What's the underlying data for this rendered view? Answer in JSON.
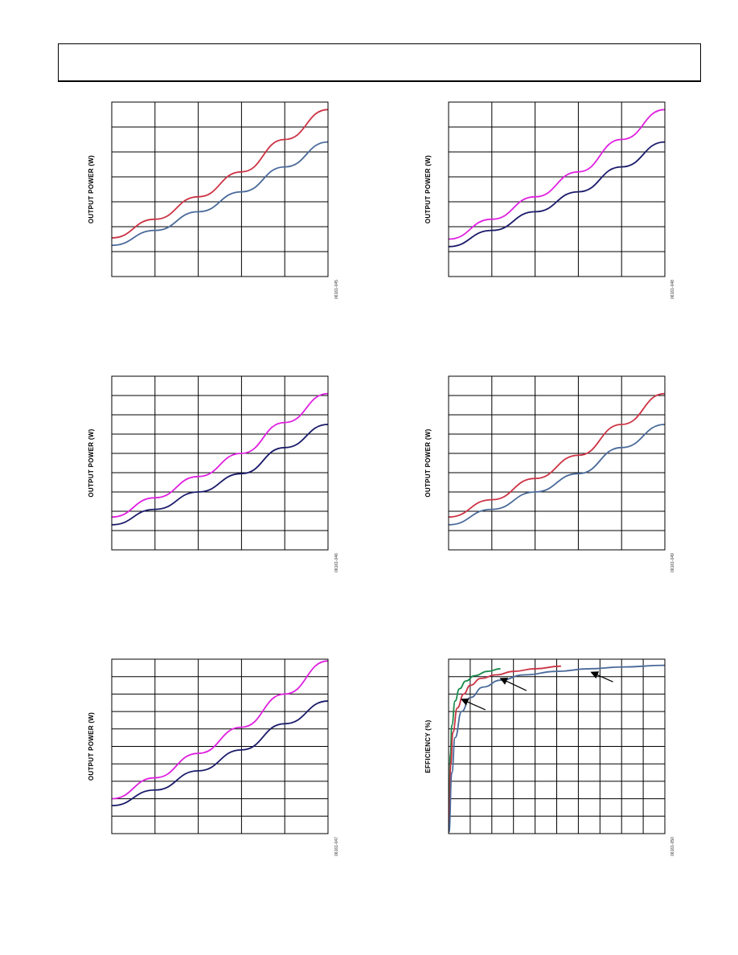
{
  "colors": {
    "red": "#cc3344",
    "steelblue": "#4a6a9a",
    "magenta": "#e020e0",
    "navy": "#1a1a6a",
    "green": "#1a8a4a",
    "frame": "#000000"
  },
  "chart_data": [
    {
      "id": "chart-1",
      "type": "line",
      "ylabel": "OUTPUT POWER (W)",
      "figure_id": "06161-045",
      "xlim": [
        0,
        5
      ],
      "ylim": [
        0,
        7
      ],
      "grid": {
        "x_divisions": 5,
        "y_divisions": 7
      },
      "series": [
        {
          "color": "red",
          "x": [
            0,
            1,
            2,
            3,
            4,
            5
          ],
          "y": [
            1.55,
            2.3,
            3.2,
            4.2,
            5.5,
            6.7
          ]
        },
        {
          "color": "steelblue",
          "x": [
            0,
            1,
            2,
            3,
            4,
            5
          ],
          "y": [
            1.25,
            1.85,
            2.6,
            3.4,
            4.4,
            5.4
          ]
        }
      ]
    },
    {
      "id": "chart-2",
      "type": "line",
      "ylabel": "OUTPUT POWER (W)",
      "figure_id": "06161-048",
      "xlim": [
        0,
        5
      ],
      "ylim": [
        0,
        7
      ],
      "grid": {
        "x_divisions": 5,
        "y_divisions": 7
      },
      "series": [
        {
          "color": "magenta",
          "x": [
            0,
            1,
            2,
            3,
            4,
            5
          ],
          "y": [
            1.5,
            2.3,
            3.2,
            4.2,
            5.5,
            6.7
          ]
        },
        {
          "color": "navy",
          "x": [
            0,
            1,
            2,
            3,
            4,
            5
          ],
          "y": [
            1.2,
            1.85,
            2.6,
            3.4,
            4.4,
            5.4
          ]
        }
      ]
    },
    {
      "id": "chart-3",
      "type": "line",
      "ylabel": "OUTPUT POWER (W)",
      "figure_id": "06161-046",
      "xlim": [
        0,
        5
      ],
      "ylim": [
        0,
        9
      ],
      "grid": {
        "x_divisions": 5,
        "y_divisions": 9
      },
      "series": [
        {
          "color": "magenta",
          "x": [
            0,
            1,
            2,
            3,
            4,
            5
          ],
          "y": [
            1.7,
            2.7,
            3.8,
            5.0,
            6.6,
            8.1
          ]
        },
        {
          "color": "navy",
          "x": [
            0,
            1,
            2,
            3,
            4,
            5
          ],
          "y": [
            1.3,
            2.1,
            3.0,
            3.95,
            5.3,
            6.5
          ]
        }
      ]
    },
    {
      "id": "chart-4",
      "type": "line",
      "ylabel": "OUTPUT POWER (W)",
      "figure_id": "06161-049",
      "xlim": [
        0,
        5
      ],
      "ylim": [
        0,
        9
      ],
      "grid": {
        "x_divisions": 5,
        "y_divisions": 9
      },
      "series": [
        {
          "color": "red",
          "x": [
            0,
            1,
            2,
            3,
            4,
            5
          ],
          "y": [
            1.7,
            2.6,
            3.7,
            4.9,
            6.5,
            8.1
          ]
        },
        {
          "color": "steelblue",
          "x": [
            0,
            1,
            2,
            3,
            4,
            5
          ],
          "y": [
            1.3,
            2.1,
            3.0,
            3.95,
            5.3,
            6.5
          ]
        }
      ]
    },
    {
      "id": "chart-5",
      "type": "line",
      "ylabel": "OUTPUT POWER (W)",
      "figure_id": "06161-047",
      "xlim": [
        0,
        5
      ],
      "ylim": [
        0,
        10
      ],
      "grid": {
        "x_divisions": 5,
        "y_divisions": 10
      },
      "series": [
        {
          "color": "magenta",
          "x": [
            0,
            1,
            2,
            3,
            4,
            5
          ],
          "y": [
            2.0,
            3.2,
            4.6,
            6.1,
            8.0,
            9.9
          ]
        },
        {
          "color": "navy",
          "x": [
            0,
            1,
            2,
            3,
            4,
            5
          ],
          "y": [
            1.6,
            2.5,
            3.6,
            4.8,
            6.3,
            7.6
          ]
        }
      ]
    },
    {
      "id": "chart-6",
      "type": "line",
      "ylabel": "EFFICIENCY (%)",
      "figure_id": "06161-050",
      "xlim": [
        0,
        10
      ],
      "ylim": [
        0,
        10
      ],
      "grid": {
        "x_divisions": 10,
        "y_divisions": 10
      },
      "series": [
        {
          "color": "green",
          "x": [
            0.02,
            0.08,
            0.15,
            0.3,
            0.5,
            0.8,
            1.2,
            1.8,
            2.4
          ],
          "y": [
            0.2,
            4.5,
            6.2,
            7.6,
            8.3,
            8.75,
            9.05,
            9.3,
            9.45
          ]
        },
        {
          "color": "red",
          "x": [
            0.02,
            0.1,
            0.2,
            0.4,
            0.7,
            1.0,
            1.5,
            2.2,
            3.0,
            4.0,
            5.2
          ],
          "y": [
            0.1,
            4.0,
            5.8,
            7.2,
            8.0,
            8.5,
            8.9,
            9.1,
            9.3,
            9.45,
            9.6
          ]
        },
        {
          "color": "steelblue",
          "x": [
            0.02,
            0.15,
            0.3,
            0.6,
            1.0,
            1.6,
            2.4,
            3.5,
            5.0,
            6.5,
            8.0,
            10.0
          ],
          "y": [
            0.1,
            3.5,
            5.5,
            7.0,
            7.8,
            8.4,
            8.8,
            9.1,
            9.3,
            9.45,
            9.55,
            9.65
          ]
        }
      ],
      "annotations": [
        {
          "type": "arrow",
          "from": [
            1.7,
            7.1
          ],
          "to": [
            0.6,
            7.7
          ]
        },
        {
          "type": "arrow",
          "from": [
            3.6,
            8.2
          ],
          "to": [
            2.4,
            8.9
          ]
        },
        {
          "type": "arrow",
          "from": [
            7.6,
            8.7
          ],
          "to": [
            6.6,
            9.25
          ]
        }
      ]
    }
  ]
}
